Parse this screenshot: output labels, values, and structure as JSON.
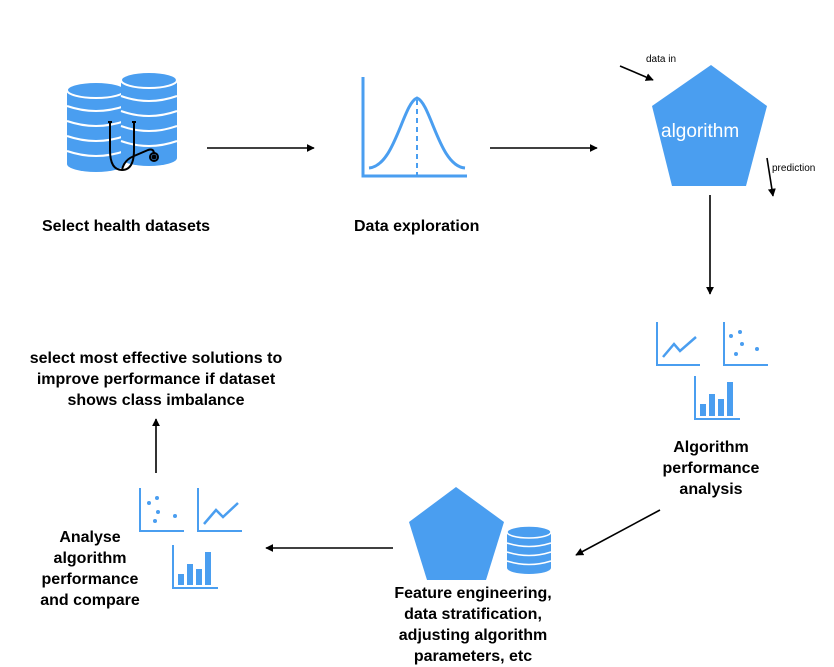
{
  "colors": {
    "accent": "#4a9ef0",
    "axis": "#4a9ef0",
    "arrow": "#000000"
  },
  "nodes": {
    "select_datasets": {
      "label": "Select health datasets",
      "icon": "database-stethoscope-icon"
    },
    "data_exploration": {
      "label": "Data exploration",
      "icon": "bell-curve-icon"
    },
    "algorithm": {
      "label": "algorithm",
      "input": "data in",
      "output": "prediction",
      "icon": "pentagon-icon"
    },
    "performance_analysis": {
      "lines": [
        "Algorithm",
        "performance",
        "analysis"
      ],
      "icon": "charts-icon"
    },
    "feature_engineering": {
      "lines": [
        "Feature engineering,",
        "data stratification,",
        "adjusting algorithm",
        "parameters, etc"
      ],
      "icon": "pentagon-database-icon"
    },
    "analyse_compare": {
      "lines": [
        "Analyse",
        "algorithm",
        "performance",
        "and compare"
      ],
      "icon": "charts-icon"
    },
    "select_solutions": {
      "lines": [
        "select most effective solutions to",
        "improve performance if dataset",
        "shows class imbalance"
      ]
    }
  }
}
